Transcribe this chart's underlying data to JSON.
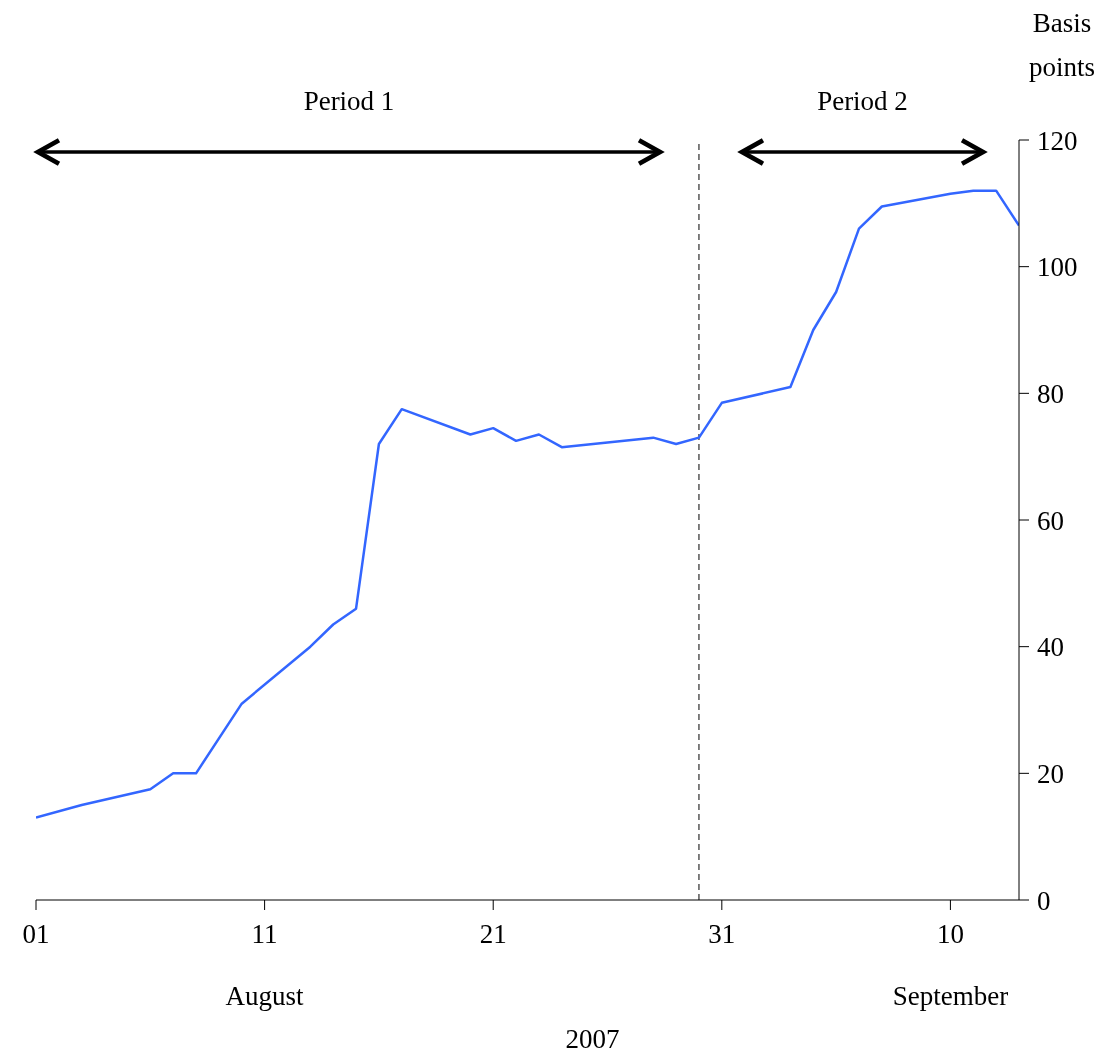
{
  "chart_data": {
    "type": "line",
    "xlabel": "2007",
    "ylabel": "Basis points",
    "x": [
      "2007-08-01",
      "2007-08-03",
      "2007-08-06",
      "2007-08-07",
      "2007-08-08",
      "2007-08-10",
      "2007-08-13",
      "2007-08-14",
      "2007-08-15",
      "2007-08-16",
      "2007-08-17",
      "2007-08-20",
      "2007-08-21",
      "2007-08-22",
      "2007-08-23",
      "2007-08-24",
      "2007-08-28",
      "2007-08-29",
      "2007-08-30",
      "2007-08-31",
      "2007-09-03",
      "2007-09-04",
      "2007-09-05",
      "2007-09-06",
      "2007-09-07",
      "2007-09-10",
      "2007-09-11",
      "2007-09-12",
      "2007-09-13"
    ],
    "series": [
      {
        "color": "#3366ff",
        "values": [
          13,
          15,
          17.5,
          20,
          20,
          31,
          40,
          43.5,
          46,
          72,
          77.5,
          73.5,
          74.5,
          72.5,
          73.5,
          71.5,
          73,
          72,
          73,
          78.5,
          81,
          90,
          96,
          106,
          109.5,
          111.5,
          112,
          112,
          106.5
        ]
      }
    ],
    "xlim": [
      "2007-08-01",
      "2007-09-13"
    ],
    "xticks": [
      {
        "value": "2007-08-01",
        "label": "01"
      },
      {
        "value": "2007-08-11",
        "label": "11"
      },
      {
        "value": "2007-08-21",
        "label": "21"
      },
      {
        "value": "2007-08-31",
        "label": "31"
      },
      {
        "value": "2007-09-10",
        "label": "10"
      }
    ],
    "ylim": [
      0,
      120
    ],
    "yticks": [
      0,
      20,
      40,
      60,
      80,
      100,
      120
    ],
    "ref_lines": [
      {
        "axis": "x",
        "value": "2007-08-30",
        "label": null,
        "color": "#000000",
        "line_style": "dashed"
      }
    ],
    "annotations": [
      "August",
      "September",
      "Period 1",
      "Period 2"
    ],
    "line_style": "solid"
  }
}
